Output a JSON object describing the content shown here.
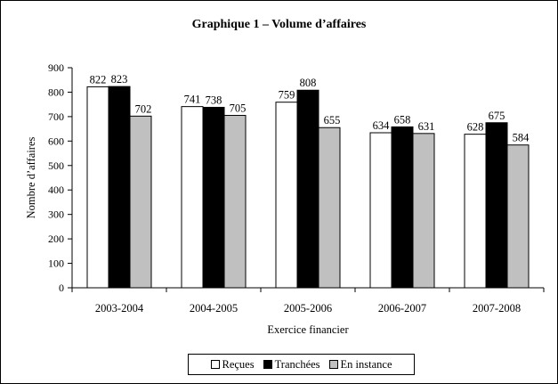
{
  "chart_data": {
    "type": "bar",
    "title": "Graphique 1 – Volume d’affaires",
    "xlabel": "Exercice financier",
    "ylabel": "Nombre d’affaires",
    "ylim": [
      0,
      900
    ],
    "yticks": [
      0,
      100,
      200,
      300,
      400,
      500,
      600,
      700,
      800,
      900
    ],
    "categories": [
      "2003-2004",
      "2004-2005",
      "2005-2006",
      "2006-2007",
      "2007-2008"
    ],
    "series": [
      {
        "name": "Reçues",
        "color": "#ffffff",
        "values": [
          822,
          741,
          759,
          634,
          628
        ]
      },
      {
        "name": "Tranchées",
        "color": "#000000",
        "values": [
          823,
          738,
          808,
          658,
          675
        ]
      },
      {
        "name": "En instance",
        "color": "#c0c0c0",
        "values": [
          702,
          705,
          655,
          631,
          584
        ]
      }
    ],
    "grid": false,
    "legend_position": "bottom"
  }
}
